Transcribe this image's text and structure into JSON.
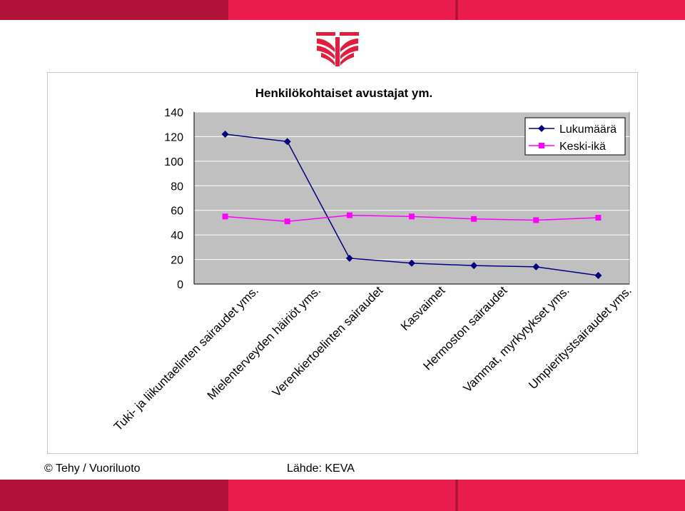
{
  "footer": {
    "copyright": "© Tehy / Vuoriluoto",
    "source": "Lähde: KEVA"
  },
  "colors": {
    "band_dark": "#b0123a",
    "band_light": "#ea1c4b",
    "logo": "#e41c3d",
    "plot_bg": "#c0c0c0",
    "series_lukumaara": "#00007f",
    "series_keski_ika": "#ff00ff"
  },
  "chart_data": {
    "type": "line",
    "title": "Henkilökohtaiset avustajat ym.",
    "categories": [
      "Tuki- ja liikuntaelinten sairaudet yms.",
      "Mielenterveyden häiriöt yms.",
      "Verenkiertoelinten sairaudet",
      "Kasvaimet",
      "Hermoston sairaudet",
      "Vammat, myrkytykset yms.",
      "Umpieritystsairaudet yms."
    ],
    "series": [
      {
        "name": "Lukumäärä",
        "values": [
          122,
          116,
          21,
          17,
          15,
          14,
          7
        ],
        "color": "#00007f",
        "marker": "diamond"
      },
      {
        "name": "Keski-ikä",
        "values": [
          55,
          51,
          56,
          55,
          53,
          52,
          54
        ],
        "color": "#ff00ff",
        "marker": "square"
      }
    ],
    "ylim": [
      0,
      140
    ],
    "yticks": [
      0,
      20,
      40,
      60,
      80,
      100,
      120,
      140
    ],
    "grid": true,
    "legend": "top-right"
  }
}
